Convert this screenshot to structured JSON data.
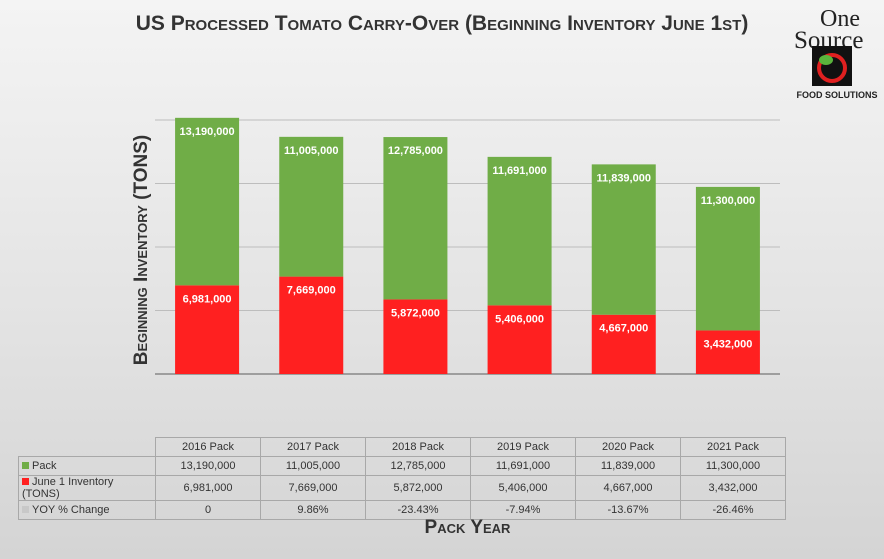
{
  "logo": {
    "text_line1": "One",
    "text_line2": "Source",
    "text_line3": "FOOD SOLUTIONS"
  },
  "chart_data": {
    "type": "bar",
    "stacked": true,
    "title": "US Processed Tomato Carry-Over (Beginning Inventory June 1st)",
    "xlabel": "Pack Year",
    "ylabel": "Beginning Inventory (TONS)",
    "ylim": [
      0,
      20000000
    ],
    "grid": true,
    "categories": [
      "2016 Pack",
      "2017 Pack",
      "2018 Pack",
      "2019 Pack",
      "2020 Pack",
      "2021 Pack"
    ],
    "series": [
      {
        "name": "June 1 Inventory (TONS)",
        "color": "#ff2020",
        "values": [
          6981000,
          7669000,
          5872000,
          5406000,
          4667000,
          3432000
        ],
        "labels": [
          "6,981,000",
          "7,669,000",
          "5,872,000",
          "5,406,000",
          "4,667,000",
          "3,432,000"
        ]
      },
      {
        "name": "Pack",
        "color": "#70ad47",
        "values": [
          13190000,
          11005000,
          12785000,
          11691000,
          11839000,
          11300000
        ],
        "labels": [
          "13,190,000",
          "11,005,000",
          "12,785,000",
          "11,691,000",
          "11,839,000",
          "11,300,000"
        ]
      }
    ],
    "table": {
      "rows": [
        {
          "name": "Pack",
          "color": "#70ad47",
          "cells": [
            "13,190,000",
            "11,005,000",
            "12,785,000",
            "11,691,000",
            "11,839,000",
            "11,300,000"
          ]
        },
        {
          "name": "June 1 Inventory (TONS)",
          "color": "#ff2020",
          "cells": [
            "6,981,000",
            "7,669,000",
            "5,872,000",
            "5,406,000",
            "4,667,000",
            "3,432,000"
          ]
        },
        {
          "name": "YOY % Change",
          "color": "#c8c8c8",
          "cells": [
            "0",
            "9.86%",
            "-23.43%",
            "-7.94%",
            "-13.67%",
            "-26.46%"
          ]
        }
      ]
    }
  }
}
